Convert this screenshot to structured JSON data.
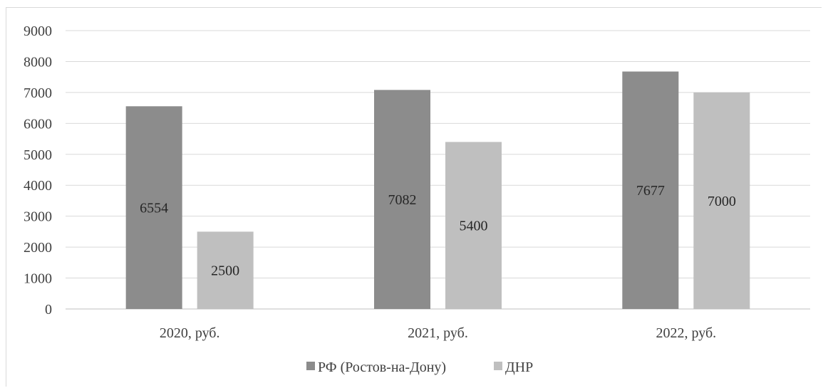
{
  "chart_data": {
    "type": "bar",
    "title": "",
    "xlabel": "",
    "ylabel": "",
    "categories": [
      "2020, руб.",
      "2021, руб.",
      "2022, руб."
    ],
    "series": [
      {
        "name": "РФ (Ростов-на-Дону)",
        "values": [
          6554,
          7082,
          7677
        ],
        "color": "#8c8c8c"
      },
      {
        "name": "ДНР",
        "values": [
          2500,
          5400,
          7000
        ],
        "color": "#bfbfbf"
      }
    ],
    "ylim": [
      0,
      9000
    ],
    "yticks": [
      0,
      1000,
      2000,
      3000,
      4000,
      5000,
      6000,
      7000,
      8000,
      9000
    ],
    "data_labels": true,
    "grid": true,
    "legend": "bottom"
  }
}
